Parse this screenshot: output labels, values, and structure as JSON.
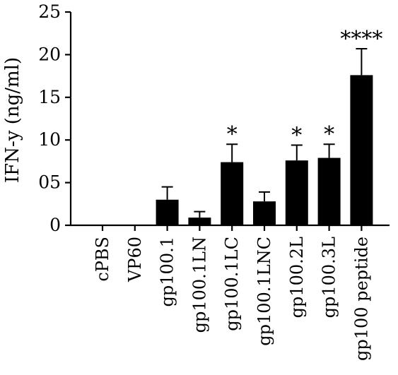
{
  "chart_data": {
    "type": "bar",
    "ylabel": "IFN-y (ng/ml)",
    "xlabel": "",
    "ylim": [
      0,
      25
    ],
    "yticks": [
      {
        "value": 0,
        "label": "0"
      },
      {
        "value": 5,
        "label": "05"
      },
      {
        "value": 10,
        "label": "10"
      },
      {
        "value": 15,
        "label": "15"
      },
      {
        "value": 20,
        "label": "20"
      },
      {
        "value": 25,
        "label": "25"
      }
    ],
    "categories": [
      "cPBS",
      "VP60",
      "gp100.1",
      "gp100.1LN",
      "gp100.1LC",
      "gp100.1LNC",
      "gp100.2L",
      "gp100.3L",
      "gp100 peptide"
    ],
    "values": [
      0,
      0,
      3.0,
      0.9,
      7.4,
      2.8,
      7.6,
      7.9,
      17.6
    ],
    "errors": [
      0,
      0,
      1.5,
      0.7,
      2.1,
      1.1,
      1.8,
      1.6,
      3.1
    ],
    "significance": [
      "",
      "",
      "",
      "",
      "*",
      "",
      "*",
      "*",
      "****"
    ],
    "bar_color": "#000000",
    "grid": false,
    "legend": "none"
  }
}
